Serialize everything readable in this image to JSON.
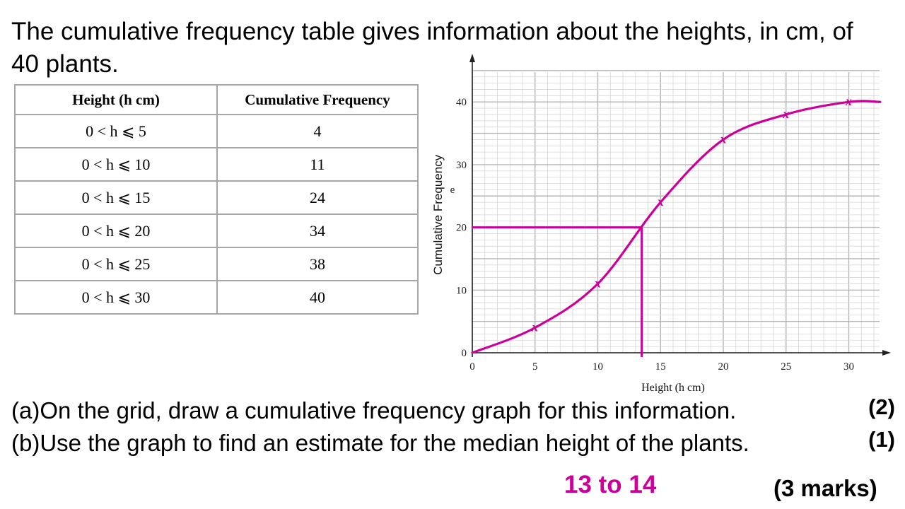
{
  "question": {
    "intro": "The cumulative frequency table gives information about the heights, in cm, of 40 plants.",
    "part_a": "(a)On the grid, draw a cumulative frequency graph for this information.",
    "part_a_marks": "(2)",
    "part_b": "(b)Use the graph to find an estimate for the median height of the plants.",
    "part_b_marks": "(1)",
    "answer": "13 to 14",
    "total_marks": "(3 marks)"
  },
  "table": {
    "headers": [
      "Height (h cm)",
      "Cumulative Frequency"
    ],
    "rows": [
      [
        "0 < h ⩽ 5",
        "4"
      ],
      [
        "0 < h ⩽ 10",
        "11"
      ],
      [
        "0 < h ⩽ 15",
        "24"
      ],
      [
        "0 < h ⩽ 20",
        "34"
      ],
      [
        "0 < h ⩽ 25",
        "38"
      ],
      [
        "0 < h ⩽ 30",
        "40"
      ]
    ]
  },
  "chart_data": {
    "type": "line",
    "title": "",
    "xlabel": "Height (h cm)",
    "ylabel": "Cumulative Frequency",
    "ylabel_stray": "e",
    "xlim": [
      0,
      32.5
    ],
    "ylim": [
      0,
      45
    ],
    "xticks": [
      0,
      5,
      10,
      15,
      20,
      25,
      30
    ],
    "yticks": [
      0,
      10,
      20,
      30,
      40
    ],
    "grid": true,
    "series": [
      {
        "x": [
          0,
          5,
          10,
          15,
          20,
          25,
          30,
          32.5
        ],
        "y": [
          0,
          4,
          11,
          24,
          34,
          38,
          40,
          40
        ],
        "marker": "x",
        "points_x": [
          5,
          10,
          15,
          20,
          25,
          30
        ],
        "points_y": [
          4,
          11,
          24,
          34,
          38,
          40
        ],
        "point_label": "x"
      }
    ],
    "median_guide": {
      "cumulative_frequency": 20,
      "height": 13.5
    },
    "colors": {
      "curve": "#cc0099",
      "grid_minor": "#d6d6d6",
      "grid_major": "#b5b5b5"
    }
  }
}
